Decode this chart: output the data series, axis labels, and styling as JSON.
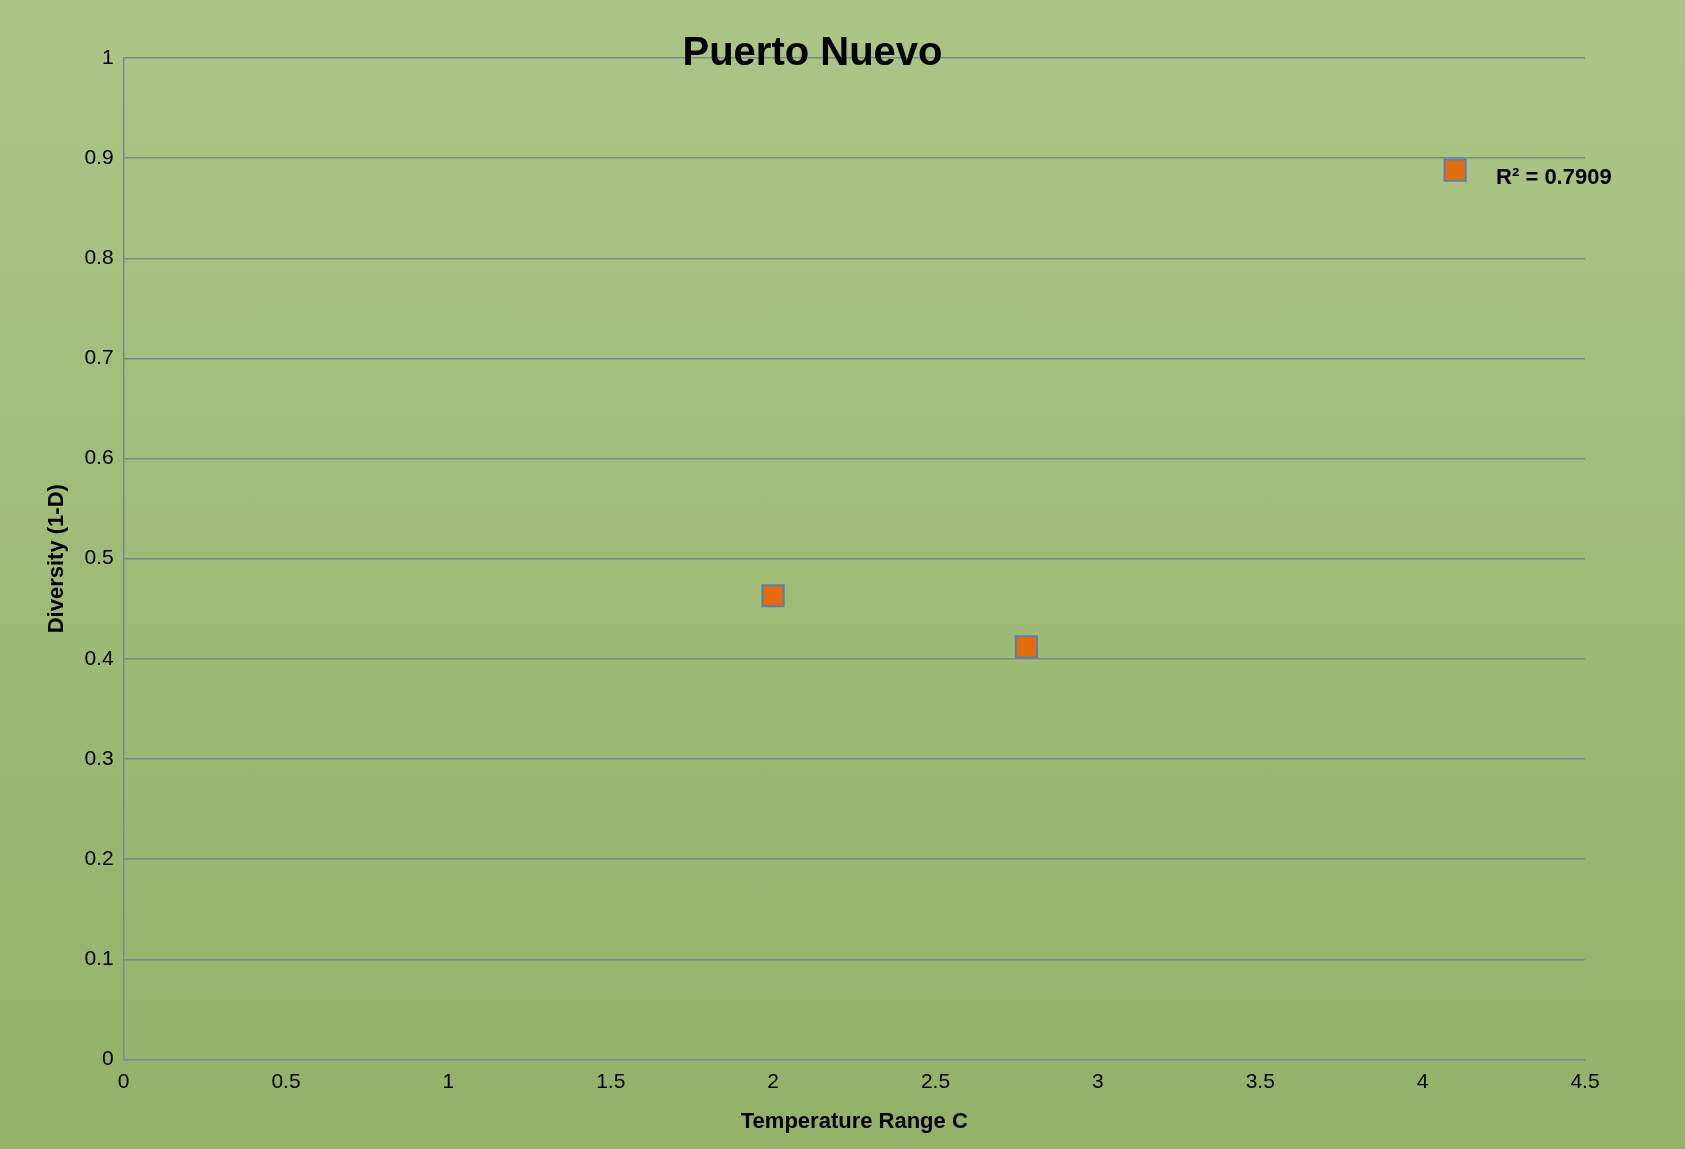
{
  "chart_data": {
    "type": "scatter",
    "title": "Puerto Nuevo",
    "xlabel": "Temperature Range C",
    "ylabel": "Diversity (1-D)",
    "x": [
      2.0,
      2.78,
      4.1
    ],
    "series": [
      {
        "color": "#e36c0a",
        "values": [
          0.463,
          0.412,
          0.888
        ]
      }
    ],
    "xlim": [
      0,
      4.5
    ],
    "xticks": [
      0,
      0.5,
      1,
      1.5,
      2,
      2.5,
      3,
      3.5,
      4,
      4.5
    ],
    "ylim": [
      0,
      1
    ],
    "yticks": [
      0,
      0.1,
      0.2,
      0.3,
      0.4,
      0.5,
      0.6,
      0.7,
      0.8,
      0.9,
      1
    ],
    "grid": "y",
    "legend": false,
    "marker": "square",
    "annotations": [
      "R² = 0.7909"
    ]
  }
}
